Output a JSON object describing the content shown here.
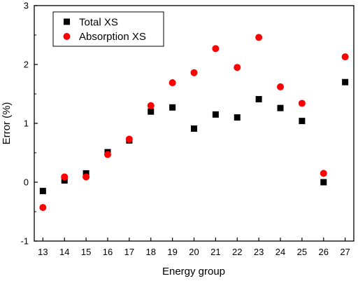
{
  "chart_data": {
    "type": "scatter",
    "xlabel": "Energy group",
    "ylabel": "Error (%)",
    "xlim": [
      12.6,
      27.4
    ],
    "ylim": [
      -1,
      3
    ],
    "x_ticks": [
      13,
      14,
      15,
      16,
      17,
      18,
      19,
      20,
      21,
      22,
      23,
      24,
      25,
      26,
      27
    ],
    "y_ticks": [
      -1,
      0,
      1,
      2,
      3
    ],
    "legend_position": "top-left",
    "x": [
      13,
      14,
      15,
      16,
      17,
      18,
      19,
      20,
      21,
      22,
      23,
      24,
      25,
      26,
      27
    ],
    "series": [
      {
        "name": "Total XS",
        "marker": "square",
        "color": "#000000",
        "values": [
          -0.15,
          0.03,
          0.15,
          0.51,
          0.71,
          1.2,
          1.27,
          0.91,
          1.15,
          1.1,
          1.41,
          1.26,
          1.04,
          0.0,
          1.7
        ]
      },
      {
        "name": "Absorption XS",
        "marker": "circle",
        "color": "#ff0000",
        "values": [
          -0.43,
          0.09,
          0.09,
          0.47,
          0.73,
          1.3,
          1.69,
          1.86,
          2.27,
          1.95,
          2.46,
          1.62,
          1.34,
          0.15,
          2.13
        ]
      }
    ]
  }
}
